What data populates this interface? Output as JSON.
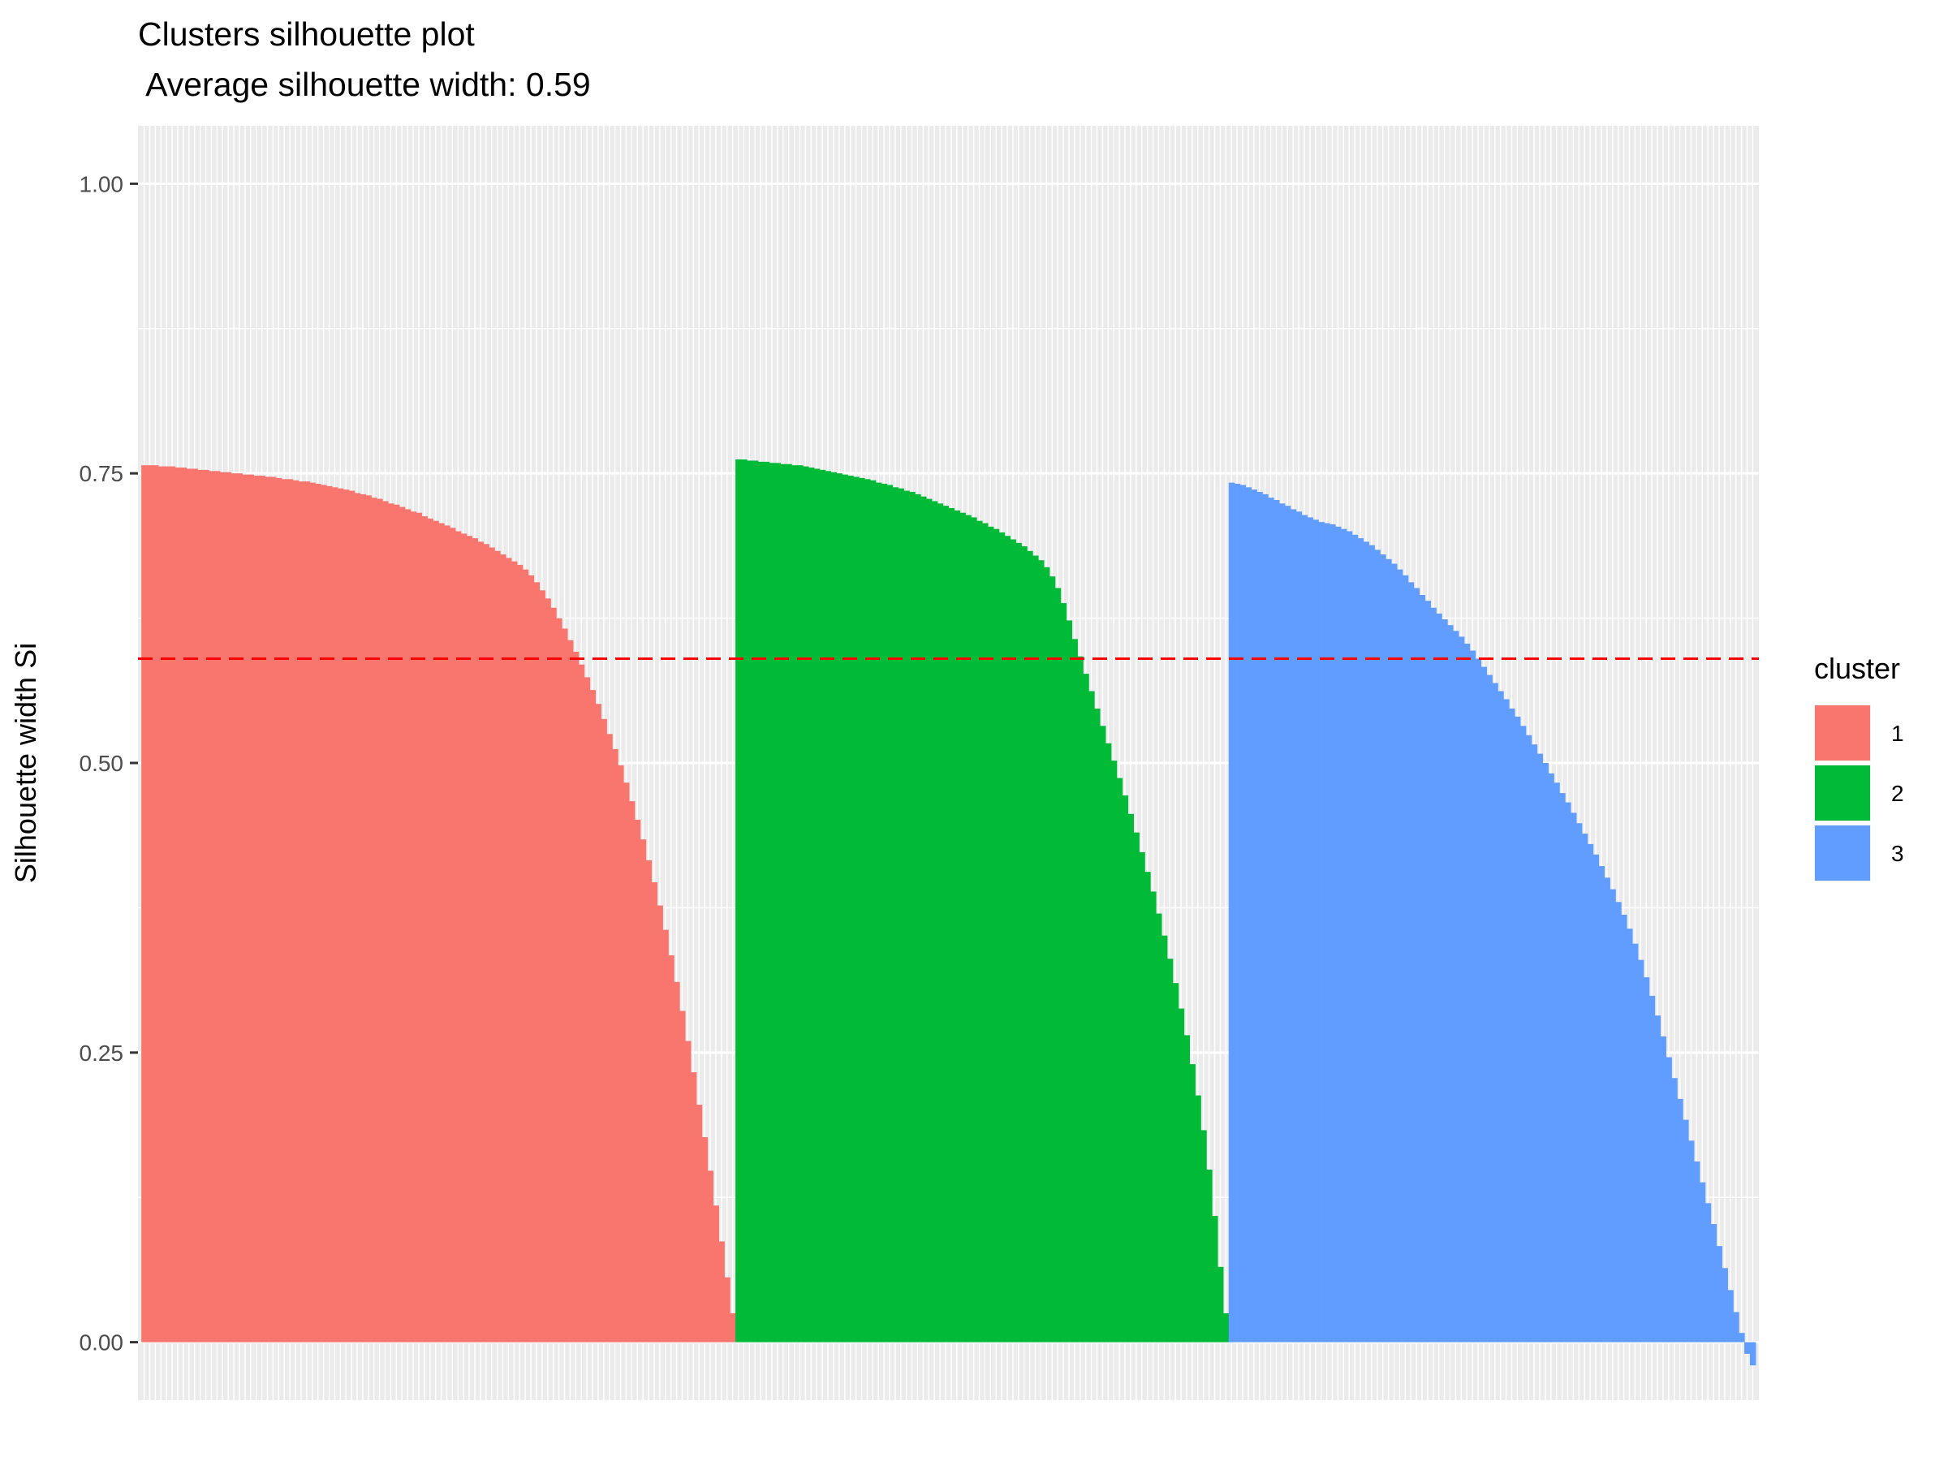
{
  "chart_data": {
    "type": "bar",
    "title": "Clusters silhouette plot",
    "subtitle": " Average silhouette width: 0.59",
    "xlabel": "",
    "ylabel": "Silhouette width Si",
    "ylim": [
      -0.05,
      1.05
    ],
    "yticks": [
      "0.00",
      "0.25",
      "0.50",
      "0.75",
      "1.00"
    ],
    "grid": true,
    "legend": {
      "title": "cluster",
      "placement": "right"
    },
    "average_line": {
      "value": 0.59,
      "color": "#FF0000",
      "style": "dashed"
    },
    "series": [
      {
        "name": "1",
        "color": "#F8766D",
        "values": [
          0.757,
          0.757,
          0.757,
          0.756,
          0.756,
          0.756,
          0.755,
          0.755,
          0.754,
          0.754,
          0.753,
          0.753,
          0.752,
          0.752,
          0.751,
          0.751,
          0.75,
          0.75,
          0.749,
          0.749,
          0.748,
          0.748,
          0.747,
          0.747,
          0.746,
          0.745,
          0.745,
          0.744,
          0.743,
          0.743,
          0.742,
          0.741,
          0.74,
          0.739,
          0.738,
          0.737,
          0.736,
          0.735,
          0.733,
          0.732,
          0.731,
          0.729,
          0.728,
          0.726,
          0.724,
          0.723,
          0.721,
          0.719,
          0.717,
          0.716,
          0.713,
          0.711,
          0.709,
          0.707,
          0.705,
          0.703,
          0.7,
          0.698,
          0.696,
          0.694,
          0.691,
          0.689,
          0.686,
          0.683,
          0.68,
          0.677,
          0.674,
          0.671,
          0.667,
          0.662,
          0.656,
          0.649,
          0.642,
          0.634,
          0.625,
          0.616,
          0.606,
          0.596,
          0.585,
          0.574,
          0.563,
          0.551,
          0.538,
          0.525,
          0.512,
          0.498,
          0.483,
          0.467,
          0.451,
          0.434,
          0.416,
          0.397,
          0.377,
          0.356,
          0.334,
          0.311,
          0.286,
          0.26,
          0.233,
          0.205,
          0.177,
          0.148,
          0.118,
          0.087,
          0.056,
          0.025
        ]
      },
      {
        "name": "2",
        "color": "#00BA38",
        "values": [
          0.762,
          0.762,
          0.761,
          0.761,
          0.76,
          0.76,
          0.759,
          0.759,
          0.758,
          0.758,
          0.757,
          0.757,
          0.756,
          0.755,
          0.754,
          0.753,
          0.752,
          0.751,
          0.75,
          0.749,
          0.748,
          0.747,
          0.746,
          0.745,
          0.744,
          0.742,
          0.741,
          0.74,
          0.738,
          0.737,
          0.735,
          0.734,
          0.732,
          0.73,
          0.728,
          0.726,
          0.724,
          0.722,
          0.72,
          0.718,
          0.716,
          0.714,
          0.712,
          0.709,
          0.707,
          0.704,
          0.702,
          0.699,
          0.696,
          0.693,
          0.69,
          0.687,
          0.683,
          0.679,
          0.675,
          0.669,
          0.661,
          0.651,
          0.638,
          0.623,
          0.607,
          0.592,
          0.577,
          0.562,
          0.547,
          0.532,
          0.517,
          0.502,
          0.487,
          0.472,
          0.456,
          0.44,
          0.423,
          0.406,
          0.389,
          0.37,
          0.351,
          0.331,
          0.31,
          0.288,
          0.265,
          0.24,
          0.213,
          0.183,
          0.149,
          0.109,
          0.065,
          0.025
        ]
      },
      {
        "name": "3",
        "color": "#619CFF",
        "values": [
          0.742,
          0.741,
          0.74,
          0.738,
          0.736,
          0.734,
          0.732,
          0.729,
          0.727,
          0.724,
          0.722,
          0.719,
          0.717,
          0.714,
          0.712,
          0.71,
          0.708,
          0.707,
          0.706,
          0.704,
          0.702,
          0.7,
          0.697,
          0.694,
          0.691,
          0.688,
          0.684,
          0.68,
          0.676,
          0.672,
          0.667,
          0.662,
          0.656,
          0.651,
          0.645,
          0.64,
          0.634,
          0.629,
          0.624,
          0.619,
          0.614,
          0.609,
          0.603,
          0.597,
          0.59,
          0.583,
          0.576,
          0.569,
          0.562,
          0.555,
          0.547,
          0.54,
          0.532,
          0.524,
          0.516,
          0.508,
          0.5,
          0.491,
          0.483,
          0.474,
          0.466,
          0.457,
          0.448,
          0.439,
          0.43,
          0.421,
          0.411,
          0.401,
          0.391,
          0.38,
          0.369,
          0.357,
          0.344,
          0.33,
          0.315,
          0.299,
          0.282,
          0.264,
          0.246,
          0.228,
          0.21,
          0.192,
          0.174,
          0.156,
          0.138,
          0.12,
          0.102,
          0.083,
          0.064,
          0.045,
          0.026,
          0.008,
          -0.01,
          -0.02
        ]
      }
    ]
  }
}
